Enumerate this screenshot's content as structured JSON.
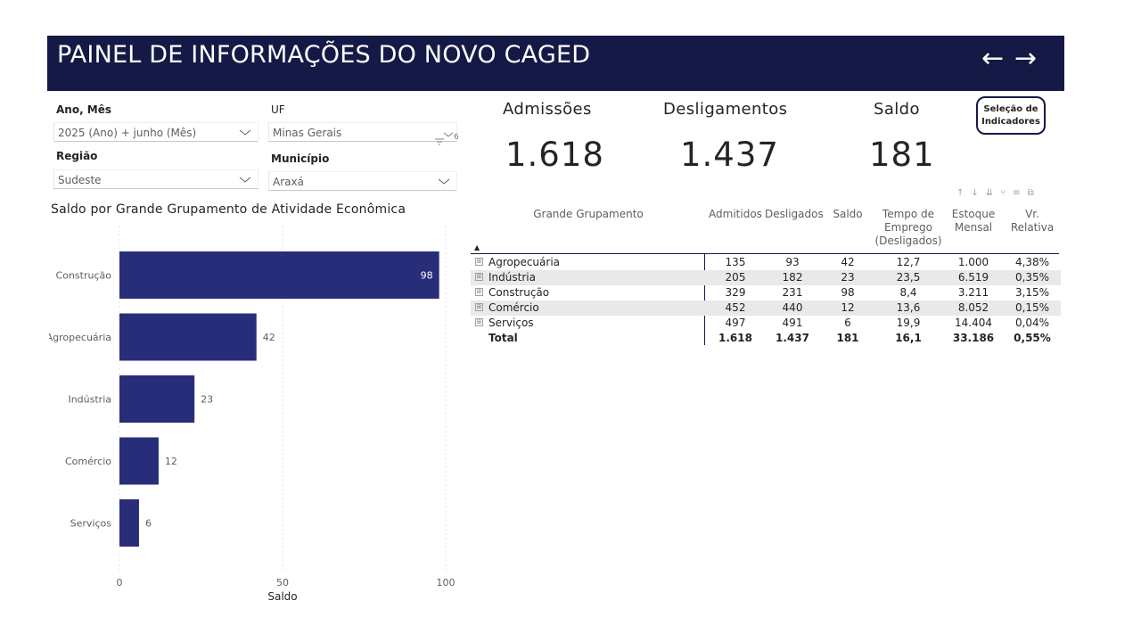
{
  "header": {
    "title": "PAINEL DE INFORMAÇÕES DO NOVO CAGED",
    "back_icon": "arrow-left-icon",
    "forward_icon": "arrow-right-icon",
    "back_glyph": "←",
    "forward_glyph": "→",
    "background": "#141a45"
  },
  "filters": {
    "ano_mes": {
      "label": "Ano, Mês",
      "value": "2025 (Ano) + junho (Mês)"
    },
    "uf": {
      "label": "UF",
      "value": "Minas Gerais",
      "extra": "6"
    },
    "regiao": {
      "label": "Região",
      "value": "Sudeste"
    },
    "municipio": {
      "label": "Município",
      "value": "Araxá"
    }
  },
  "kpis": [
    {
      "label": "Admissões",
      "value": "1.618"
    },
    {
      "label": "Desligamentos",
      "value": "1.437"
    },
    {
      "label": "Saldo",
      "value": "181"
    }
  ],
  "selector_button": {
    "label_line1": "Seleção de",
    "label_line2": "Indicadores",
    "border_color": "#141a45"
  },
  "chart_data": {
    "type": "bar",
    "orientation": "horizontal",
    "title": "Saldo por Grande Grupamento de Atividade Econômica",
    "categories": [
      "Construção",
      "Agropecuária",
      "Indústria",
      "Comércio",
      "Serviços"
    ],
    "values": [
      98,
      42,
      23,
      12,
      6
    ],
    "data_labels": [
      "98",
      "42",
      "23",
      "12",
      "6"
    ],
    "xlabel": "Saldo",
    "xlim": [
      0,
      100
    ],
    "xticks": [
      "0",
      "50",
      "100"
    ],
    "bar_color": "#282d79",
    "grid": true
  },
  "table": {
    "headers": [
      "Grande Grupamento",
      "Admitidos",
      "Desligados",
      "Saldo",
      "Tempo de Emprego (Desligados)",
      "Estoque Mensal",
      "Vr. Relativa"
    ],
    "header_lines": {
      "tempo": [
        "Tempo de",
        "Emprego",
        "(Desligados)"
      ],
      "estoque": [
        "Estoque",
        "Mensal"
      ],
      "vr": [
        "Vr.",
        "Relativa"
      ]
    },
    "sort_icon": "▲",
    "expand_glyph": "⊞",
    "rows": [
      {
        "grupo": "Agropecuária",
        "admitidos": "135",
        "desligados": "93",
        "saldo": "42",
        "tempo": "12,7",
        "estoque": "1.000",
        "vr": "4,38%"
      },
      {
        "grupo": "Indústria",
        "admitidos": "205",
        "desligados": "182",
        "saldo": "23",
        "tempo": "23,5",
        "estoque": "6.519",
        "vr": "0,35%"
      },
      {
        "grupo": "Construção",
        "admitidos": "329",
        "desligados": "231",
        "saldo": "98",
        "tempo": "8,4",
        "estoque": "3.211",
        "vr": "3,15%"
      },
      {
        "grupo": "Comércio",
        "admitidos": "452",
        "desligados": "440",
        "saldo": "12",
        "tempo": "13,6",
        "estoque": "8.052",
        "vr": "0,15%"
      },
      {
        "grupo": "Serviços",
        "admitidos": "497",
        "desligados": "491",
        "saldo": "6",
        "tempo": "19,9",
        "estoque": "14.404",
        "vr": "0,04%"
      }
    ],
    "total": {
      "grupo": "Total",
      "admitidos": "1.618",
      "desligados": "1.437",
      "saldo": "181",
      "tempo": "16,1",
      "estoque": "33.186",
      "vr": "0,55%"
    },
    "toolbar_icons": [
      "sort-ascending-icon",
      "drill-down-icon",
      "expand-all-icon",
      "drill-hierarchy-icon",
      "filter-icon",
      "focus-mode-icon"
    ],
    "toolbar_glyphs": [
      "↑",
      "↓",
      "⇊",
      "⑂",
      "≡",
      "⧉"
    ],
    "stripe_color": "#e9e9e9"
  }
}
